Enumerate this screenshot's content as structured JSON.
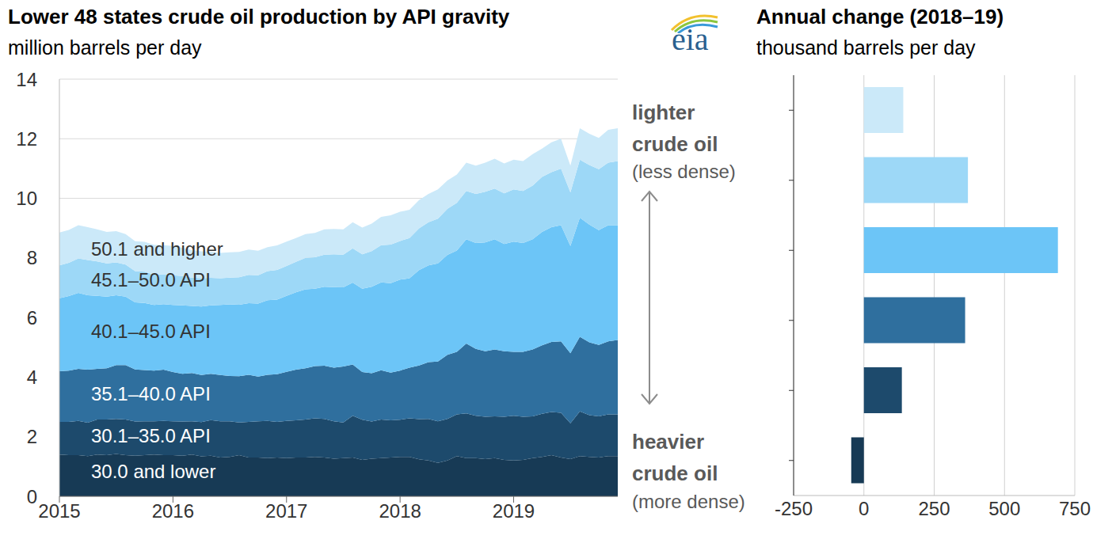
{
  "logo": "eia",
  "chart_data": [
    {
      "type": "area",
      "title": "Lower 48 states crude oil production by API gravity",
      "subtitle": "million barrels per day",
      "stacked": true,
      "x": [
        2015,
        2015.083,
        2015.167,
        2015.25,
        2015.333,
        2015.417,
        2015.5,
        2015.583,
        2015.667,
        2015.75,
        2015.833,
        2015.917,
        2016,
        2016.083,
        2016.167,
        2016.25,
        2016.333,
        2016.417,
        2016.5,
        2016.583,
        2016.667,
        2016.75,
        2016.833,
        2016.917,
        2017,
        2017.083,
        2017.167,
        2017.25,
        2017.333,
        2017.417,
        2017.5,
        2017.583,
        2017.667,
        2017.75,
        2017.833,
        2017.917,
        2018,
        2018.083,
        2018.167,
        2018.25,
        2018.333,
        2018.417,
        2018.5,
        2018.583,
        2018.667,
        2018.75,
        2018.833,
        2018.917,
        2019,
        2019.083,
        2019.167,
        2019.25,
        2019.333,
        2019.417,
        2019.5,
        2019.583,
        2019.667,
        2019.75,
        2019.833,
        2019.917
      ],
      "series": [
        {
          "name": "30.0 and lower",
          "color": "#173a55",
          "values": [
            1.4,
            1.38,
            1.38,
            1.35,
            1.4,
            1.38,
            1.42,
            1.38,
            1.36,
            1.38,
            1.4,
            1.38,
            1.38,
            1.36,
            1.4,
            1.34,
            1.36,
            1.3,
            1.32,
            1.38,
            1.3,
            1.3,
            1.28,
            1.3,
            1.28,
            1.3,
            1.3,
            1.32,
            1.3,
            1.26,
            1.28,
            1.3,
            1.22,
            1.26,
            1.28,
            1.3,
            1.32,
            1.32,
            1.24,
            1.2,
            1.12,
            1.2,
            1.35,
            1.28,
            1.28,
            1.25,
            1.28,
            1.22,
            1.2,
            1.22,
            1.28,
            1.32,
            1.38,
            1.3,
            1.25,
            1.35,
            1.32,
            1.3,
            1.35,
            1.35
          ]
        },
        {
          "name": "30.1–35.0 API",
          "color": "#1d4a6c",
          "values": [
            1.1,
            1.12,
            1.15,
            1.12,
            1.18,
            1.2,
            1.18,
            1.2,
            1.15,
            1.14,
            1.12,
            1.15,
            1.14,
            1.15,
            1.12,
            1.15,
            1.2,
            1.22,
            1.2,
            1.1,
            1.2,
            1.22,
            1.25,
            1.2,
            1.25,
            1.25,
            1.28,
            1.3,
            1.3,
            1.26,
            1.2,
            1.4,
            1.35,
            1.25,
            1.3,
            1.25,
            1.25,
            1.3,
            1.35,
            1.4,
            1.4,
            1.4,
            1.4,
            1.5,
            1.42,
            1.42,
            1.4,
            1.45,
            1.5,
            1.45,
            1.4,
            1.45,
            1.45,
            1.5,
            1.2,
            1.5,
            1.4,
            1.38,
            1.4,
            1.4
          ]
        },
        {
          "name": "35.1–40.0 API",
          "color": "#2f6f9e",
          "values": [
            1.7,
            1.72,
            1.75,
            1.78,
            1.7,
            1.72,
            1.8,
            1.82,
            1.75,
            1.72,
            1.7,
            1.72,
            1.65,
            1.6,
            1.62,
            1.58,
            1.55,
            1.55,
            1.52,
            1.55,
            1.58,
            1.5,
            1.55,
            1.6,
            1.65,
            1.7,
            1.72,
            1.75,
            1.78,
            1.8,
            1.88,
            1.72,
            1.6,
            1.62,
            1.65,
            1.6,
            1.65,
            1.7,
            1.8,
            1.9,
            2.0,
            2.15,
            2.1,
            2.35,
            2.25,
            2.2,
            2.25,
            2.2,
            2.15,
            2.18,
            2.25,
            2.3,
            2.35,
            2.4,
            2.35,
            2.5,
            2.45,
            2.4,
            2.45,
            2.5
          ]
        },
        {
          "name": "40.1–45.0 API",
          "color": "#6cc5f7",
          "values": [
            2.45,
            2.5,
            2.55,
            2.5,
            2.45,
            2.4,
            2.35,
            2.3,
            2.25,
            2.25,
            2.2,
            2.2,
            2.25,
            2.3,
            2.25,
            2.3,
            2.3,
            2.35,
            2.4,
            2.4,
            2.4,
            2.45,
            2.5,
            2.5,
            2.55,
            2.6,
            2.65,
            2.6,
            2.65,
            2.7,
            2.65,
            2.75,
            2.8,
            2.9,
            2.95,
            3.0,
            3.05,
            3.0,
            3.2,
            3.25,
            3.3,
            3.35,
            3.4,
            3.5,
            3.55,
            3.65,
            3.7,
            3.6,
            3.7,
            3.65,
            3.7,
            3.8,
            3.85,
            3.9,
            3.6,
            4.0,
            3.95,
            3.85,
            3.9,
            3.85
          ]
        },
        {
          "name": "45.1–50.0 API",
          "color": "#9dd8f7",
          "values": [
            1.1,
            1.12,
            1.15,
            1.18,
            1.15,
            1.12,
            1.1,
            1.08,
            1.05,
            1.05,
            1.02,
            1.0,
            1.0,
            0.98,
            0.95,
            0.95,
            0.92,
            0.9,
            0.9,
            0.92,
            0.95,
            0.95,
            0.98,
            1.0,
            1.0,
            1.02,
            1.05,
            1.05,
            1.08,
            1.1,
            1.1,
            1.15,
            1.15,
            1.2,
            1.25,
            1.3,
            1.3,
            1.35,
            1.4,
            1.45,
            1.5,
            1.55,
            1.6,
            1.62,
            1.65,
            1.7,
            1.7,
            1.7,
            1.75,
            1.75,
            1.8,
            1.85,
            1.85,
            1.9,
            1.8,
            1.95,
            2.0,
            2.05,
            2.1,
            2.15
          ]
        },
        {
          "name": "50.1 and higher",
          "color": "#cbe9f9",
          "values": [
            1.1,
            1.1,
            1.12,
            1.1,
            1.08,
            1.05,
            1.05,
            1.02,
            1.0,
            1.0,
            1.0,
            0.98,
            0.98,
            0.95,
            0.92,
            0.9,
            0.88,
            0.85,
            0.85,
            0.85,
            0.85,
            0.82,
            0.8,
            0.82,
            0.82,
            0.8,
            0.8,
            0.82,
            0.85,
            0.85,
            0.85,
            0.88,
            0.9,
            0.92,
            0.95,
            0.98,
            0.98,
            0.95,
            0.95,
            0.95,
            0.98,
            0.95,
            0.95,
            0.95,
            0.95,
            0.98,
            1.0,
            1.0,
            1.0,
            1.0,
            1.05,
            0.95,
            1.0,
            1.0,
            0.9,
            1.05,
            1.05,
            1.05,
            1.1,
            1.1
          ]
        }
      ],
      "xlim": [
        2015,
        2019.917
      ],
      "xticks": [
        2015,
        2016,
        2017,
        2018,
        2019
      ],
      "ylim": [
        0,
        14
      ],
      "yticks": [
        0,
        2,
        4,
        6,
        8,
        10,
        12,
        14
      ],
      "grid": "y"
    },
    {
      "type": "bar",
      "orientation": "horizontal",
      "title": "Annual change (2018–19)",
      "subtitle": "thousand barrels per day",
      "categories": [
        null,
        null,
        null,
        null,
        null,
        null
      ],
      "values": [
        140,
        370,
        690,
        360,
        135,
        -45
      ],
      "colors": [
        "#cbe9f9",
        "#9dd8f7",
        "#6cc5f7",
        "#2f6f9e",
        "#1d4a6c",
        "#173a55"
      ],
      "xlim": [
        -250,
        750
      ],
      "xticks": [
        -250,
        0,
        250,
        500,
        750
      ],
      "grid": "x",
      "annotations": [
        "lighter crude oil",
        "(less dense)",
        "heavier crude oil",
        "(more dense)"
      ]
    }
  ]
}
